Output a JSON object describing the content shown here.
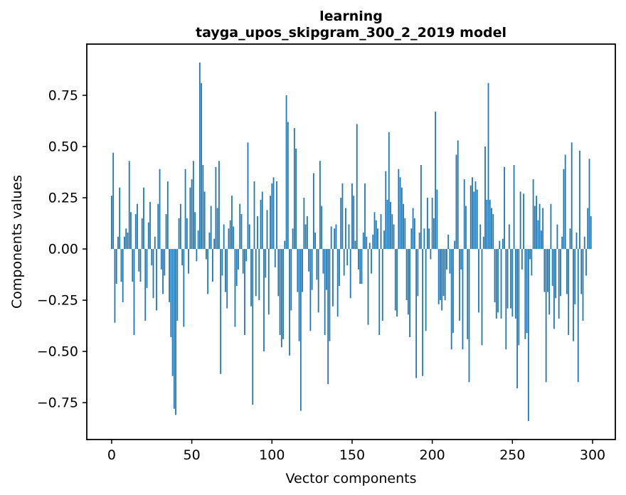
{
  "figure": {
    "title_line1": "learning",
    "title_line2": "tayga_upos_skipgram_300_2_2019 model",
    "xlabel": "Vector components",
    "ylabel": "Components values",
    "background_color": "#ffffff",
    "spine_color": "#000000",
    "bar_color": "#1f77b4"
  },
  "chart_data": {
    "type": "bar",
    "title": "learning\ntayga_upos_skipgram_300_2_2019 model",
    "xlabel": "Vector components",
    "ylabel": "Components values",
    "legend": null,
    "grid": false,
    "bar_color": "#1f77b4",
    "x_range": [
      0,
      299
    ],
    "xlim": [
      -15.5,
      314.2
    ],
    "ylim": [
      -0.93,
      1.0
    ],
    "x_ticks": [
      0,
      50,
      100,
      150,
      200,
      250,
      300
    ],
    "x_tick_labels": [
      "0",
      "50",
      "100",
      "150",
      "200",
      "250",
      "300"
    ],
    "y_ticks": [
      0.75,
      0.5,
      0.25,
      0.0,
      -0.25,
      -0.5,
      -0.75
    ],
    "y_tick_labels": [
      "0.75",
      "0.50",
      "0.25",
      "0.00",
      "−0.25",
      "−0.50",
      "−0.75"
    ],
    "values": [
      0.26,
      0.47,
      -0.36,
      -0.17,
      0.06,
      0.3,
      -0.16,
      -0.26,
      0.06,
      0.1,
      0.08,
      0.43,
      0.18,
      -0.16,
      -0.42,
      0.17,
      0.22,
      -0.11,
      -0.16,
      0.15,
      0.3,
      -0.35,
      -0.19,
      0.13,
      0.23,
      -0.08,
      -0.24,
      0.06,
      -0.3,
      0.22,
      0.39,
      -0.1,
      -0.22,
      -0.13,
      0.17,
      0.33,
      -0.26,
      -0.43,
      -0.62,
      -0.78,
      -0.81,
      -0.35,
      0.15,
      0.22,
      -0.08,
      -0.38,
      0.39,
      0.15,
      -0.12,
      0.3,
      0.34,
      0.43,
      0.18,
      -0.06,
      0.09,
      0.91,
      0.81,
      0.41,
      0.28,
      -0.05,
      -0.22,
      0.08,
      0.21,
      -0.16,
      0.05,
      0.4,
      0.2,
      0.43,
      -0.61,
      -0.13,
      0.12,
      -0.21,
      -0.29,
      0.1,
      0.14,
      0.26,
      0.11,
      -0.38,
      -0.18,
      -0.1,
      0.22,
      0.17,
      -0.12,
      -0.42,
      -0.06,
      0.52,
      0.12,
      -0.28,
      -0.76,
      0.33,
      -0.23,
      0.16,
      -0.25,
      0.24,
      0.28,
      -0.5,
      -0.14,
      0.19,
      -0.32,
      0.26,
      0.32,
      0.35,
      -0.09,
      0.33,
      -0.23,
      -0.42,
      -0.48,
      -0.44,
      0.04,
      0.75,
      0.62,
      -0.52,
      -0.3,
      0.1,
      0.59,
      0.49,
      -0.21,
      -0.45,
      -0.79,
      -0.21,
      0.25,
      0.12,
      0.16,
      -0.11,
      -0.4,
      -0.2,
      0.37,
      0.08,
      -0.15,
      -0.31,
      0.43,
      0.21,
      -0.12,
      -0.42,
      -0.2,
      -0.66,
      -0.45,
      0.11,
      -0.28,
      0.1,
      0.12,
      -0.33,
      -0.18,
      0.25,
      0.32,
      -0.13,
      0.2,
      -0.08,
      0.12,
      -0.24,
      0.32,
      0.26,
      0.04,
      0.61,
      -0.1,
      -0.17,
      -0.17,
      0.08,
      0.32,
      0.06,
      -0.37,
      0.03,
      -0.12,
      0.07,
      0.18,
      0.14,
      0.1,
      -0.42,
      0.17,
      -0.35,
      0.09,
      0.38,
      0.24,
      0.57,
      0.23,
      0.17,
      0.12,
      -0.3,
      -0.33,
      0.39,
      0.35,
      0.3,
      0.22,
      0.15,
      -0.25,
      -0.32,
      -0.43,
      0.1,
      0.2,
      0.15,
      -0.63,
      -0.23,
      0.08,
      0.41,
      -0.62,
      0.1,
      -0.4,
      0.25,
      0.1,
      -0.05,
      0.25,
      0.15,
      0.67,
      0.29,
      -0.27,
      -0.25,
      -0.3,
      -0.23,
      -0.25,
      -0.1,
      0.07,
      -0.12,
      -0.49,
      -0.41,
      0.04,
      0.46,
      0.53,
      -0.35,
      -0.1,
      -0.49,
      0.34,
      0.21,
      -0.44,
      -0.65,
      0.31,
      0.35,
      0.28,
      0.33,
      0.29,
      -0.31,
      0.12,
      -0.47,
      0.06,
      0.5,
      0.24,
      0.81,
      0.24,
      0.2,
      0.17,
      -0.26,
      -0.34,
      -0.31,
      0.04,
      -0.34,
      0.05,
      0.4,
      -0.49,
      -0.29,
      0.12,
      -0.29,
      -0.33,
      0.41,
      -0.34,
      -0.68,
      -0.47,
      0.28,
      -0.1,
      0.27,
      -0.44,
      -0.41,
      -0.84,
      -0.05,
      -0.13,
      0.34,
      0.21,
      0.26,
      0.14,
      0.22,
      0.09,
      0.2,
      -0.21,
      -0.65,
      -0.21,
      -0.32,
      0.22,
      -0.18,
      -0.39,
      -0.24,
      0.12,
      -0.34,
      -0.23,
      0.06,
      0.39,
      0.46,
      -0.22,
      -0.42,
      0.1,
      0.52,
      -0.45,
      -0.27,
      0.08,
      -0.65,
      0.48,
      -0.22,
      -0.35,
      0.06,
      -0.13,
      0.2,
      0.44,
      0.16
    ]
  }
}
